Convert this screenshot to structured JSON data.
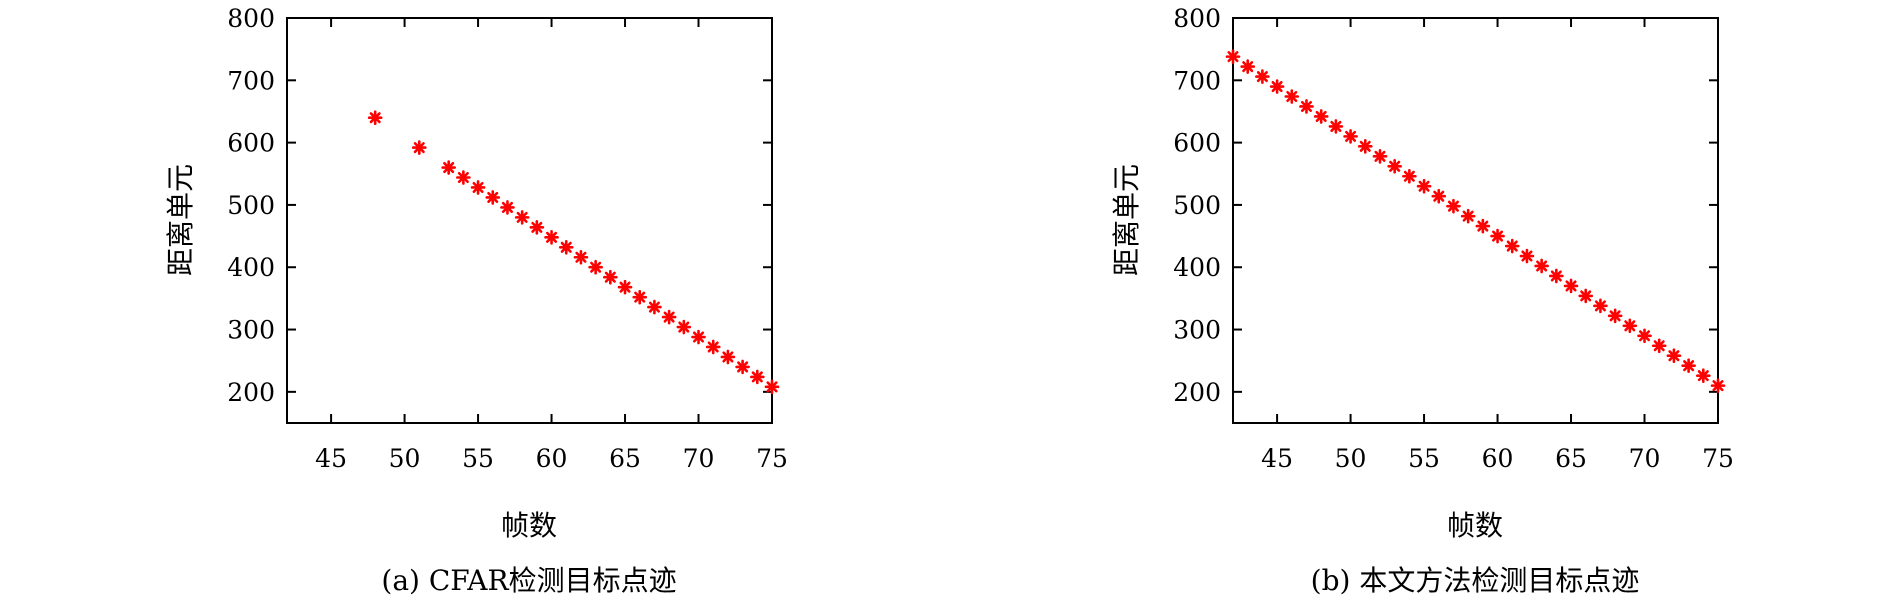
{
  "colors": {
    "marker": "#ff0000",
    "axis": "#000000"
  },
  "chart_data": [
    {
      "type": "scatter",
      "caption": "(a) CFAR检测目标点迹",
      "xlabel": "帧数",
      "ylabel": "距离单元",
      "xlim": [
        42,
        75
      ],
      "ylim": [
        150,
        800
      ],
      "xticks": [
        45,
        50,
        55,
        60,
        65,
        70,
        75
      ],
      "yticks": [
        200,
        300,
        400,
        500,
        600,
        700,
        800
      ],
      "marker": "asterisk",
      "grid": false,
      "x": [
        48,
        51,
        53,
        54,
        55,
        56,
        57,
        58,
        59,
        60,
        61,
        62,
        63,
        64,
        65,
        66,
        67,
        68,
        69,
        70,
        71,
        72,
        73,
        74,
        75
      ],
      "y": [
        640,
        592,
        560,
        544,
        528,
        512,
        496,
        480,
        464,
        448,
        432,
        416,
        400,
        384,
        368,
        352,
        336,
        320,
        304,
        288,
        272,
        256,
        240,
        224,
        208
      ]
    },
    {
      "type": "scatter",
      "caption": "(b) 本文方法检测目标点迹",
      "xlabel": "帧数",
      "ylabel": "距离单元",
      "xlim": [
        42,
        75
      ],
      "ylim": [
        150,
        800
      ],
      "xticks": [
        45,
        50,
        55,
        60,
        65,
        70,
        75
      ],
      "yticks": [
        200,
        300,
        400,
        500,
        600,
        700,
        800
      ],
      "marker": "asterisk",
      "grid": false,
      "x": [
        42,
        43,
        44,
        45,
        46,
        47,
        48,
        49,
        50,
        51,
        52,
        53,
        54,
        55,
        56,
        57,
        58,
        59,
        60,
        61,
        62,
        63,
        64,
        65,
        66,
        67,
        68,
        69,
        70,
        71,
        72,
        73,
        74,
        75
      ],
      "y": [
        738,
        722,
        706,
        690,
        674,
        658,
        642,
        626,
        610,
        594,
        578,
        562,
        546,
        530,
        514,
        498,
        482,
        466,
        450,
        434,
        418,
        402,
        386,
        370,
        354,
        338,
        322,
        306,
        290,
        274,
        258,
        242,
        226,
        210
      ]
    }
  ]
}
